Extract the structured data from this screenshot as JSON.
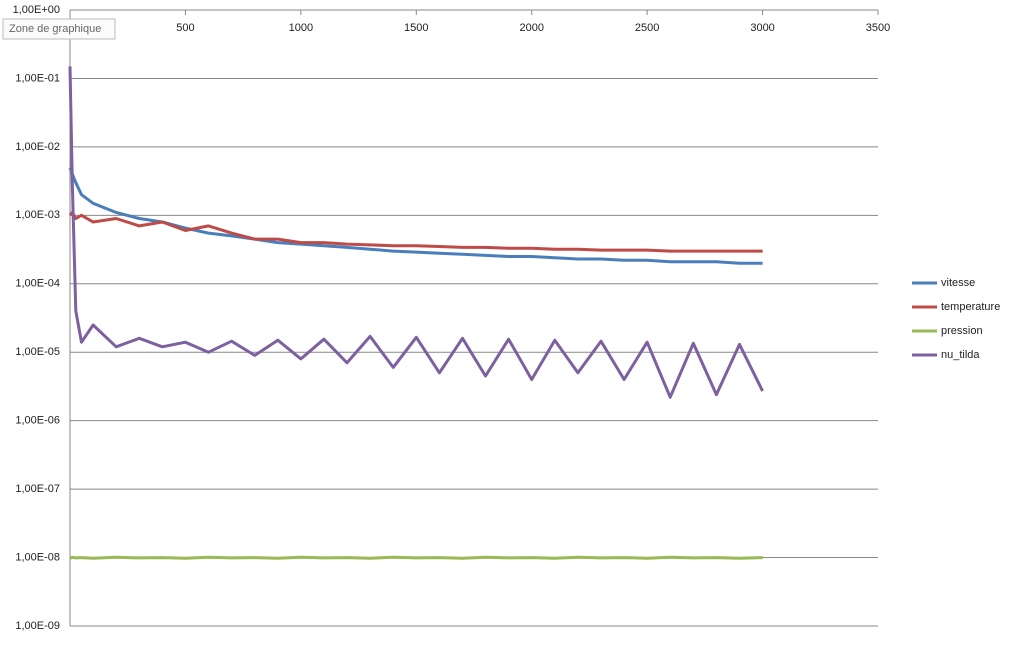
{
  "chart_data": {
    "type": "line",
    "tooltip": "Zone de graphique",
    "log_y": true,
    "grid": true,
    "legend": "right",
    "x": [
      0,
      10,
      25,
      50,
      100,
      200,
      300,
      400,
      500,
      600,
      700,
      800,
      900,
      1000,
      1100,
      1200,
      1300,
      1400,
      1500,
      1600,
      1700,
      1800,
      1900,
      2000,
      2100,
      2200,
      2300,
      2400,
      2500,
      2600,
      2700,
      2800,
      2900,
      3000
    ],
    "xlim": [
      0,
      3500
    ],
    "xticks": [
      0,
      500,
      1000,
      1500,
      2000,
      2500,
      3000,
      3500
    ],
    "ylim": [
      1e-09,
      1
    ],
    "yticks": [
      {
        "value": 1,
        "label": "1,00E+00"
      },
      {
        "value": 0.1,
        "label": "1,00E-01"
      },
      {
        "value": 0.01,
        "label": "1,00E-02"
      },
      {
        "value": 0.001,
        "label": "1,00E-03"
      },
      {
        "value": 0.0001,
        "label": "1,00E-04"
      },
      {
        "value": 1e-05,
        "label": "1,00E-05"
      },
      {
        "value": 1e-06,
        "label": "1,00E-06"
      },
      {
        "value": 1e-07,
        "label": "1,00E-07"
      },
      {
        "value": 1e-08,
        "label": "1,00E-08"
      },
      {
        "value": 1e-09,
        "label": "1,00E-09"
      }
    ],
    "series": [
      {
        "name": "vitesse",
        "color": "#4a7ebb",
        "values": [
          0.005,
          0.004,
          0.003,
          0.002,
          0.0015,
          0.0011,
          0.0009,
          0.0008,
          0.00065,
          0.00055,
          0.0005,
          0.00045,
          0.0004,
          0.00038,
          0.00036,
          0.00034,
          0.00032,
          0.0003,
          0.00029,
          0.00028,
          0.00027,
          0.00026,
          0.00025,
          0.00025,
          0.00024,
          0.00023,
          0.00023,
          0.00022,
          0.00022,
          0.00021,
          0.00021,
          0.00021,
          0.0002,
          0.0002
        ]
      },
      {
        "name": "temperature",
        "color": "#be4b48",
        "values": [
          0.001,
          0.0011,
          0.0009,
          0.001,
          0.0008,
          0.0009,
          0.0007,
          0.0008,
          0.0006,
          0.0007,
          0.00055,
          0.00045,
          0.00045,
          0.0004,
          0.0004,
          0.00038,
          0.00037,
          0.00036,
          0.00036,
          0.00035,
          0.00034,
          0.00034,
          0.00033,
          0.00033,
          0.00032,
          0.00032,
          0.00031,
          0.00031,
          0.00031,
          0.0003,
          0.0003,
          0.0003,
          0.0003,
          0.0003
        ]
      },
      {
        "name": "pression",
        "color": "#98b954",
        "values": [
          9.8e-09,
          1.01e-08,
          9.9e-09,
          1e-08,
          9.8e-09,
          1.01e-08,
          9.9e-09,
          1e-08,
          9.8e-09,
          1.01e-08,
          9.9e-09,
          1e-08,
          9.8e-09,
          1.01e-08,
          9.9e-09,
          1e-08,
          9.8e-09,
          1.01e-08,
          9.9e-09,
          1e-08,
          9.8e-09,
          1.01e-08,
          9.9e-09,
          1e-08,
          9.8e-09,
          1.01e-08,
          9.9e-09,
          1e-08,
          9.8e-09,
          1.01e-08,
          9.9e-09,
          1e-08,
          9.8e-09,
          1e-08
        ]
      },
      {
        "name": "nu_tilda",
        "color": "#7d60a0",
        "values": [
          0.15,
          0.003,
          4e-05,
          1.4e-05,
          2.5e-05,
          1.2e-05,
          1.6e-05,
          1.2e-05,
          1.4e-05,
          1e-05,
          1.45e-05,
          9e-06,
          1.5e-05,
          8e-06,
          1.55e-05,
          7e-06,
          1.7e-05,
          6e-06,
          1.65e-05,
          5e-06,
          1.6e-05,
          4.5e-06,
          1.55e-05,
          4e-06,
          1.5e-05,
          5e-06,
          1.45e-05,
          4e-06,
          1.4e-05,
          2.2e-06,
          1.35e-05,
          2.4e-06,
          1.3e-05,
          2.7e-06
        ]
      }
    ]
  }
}
